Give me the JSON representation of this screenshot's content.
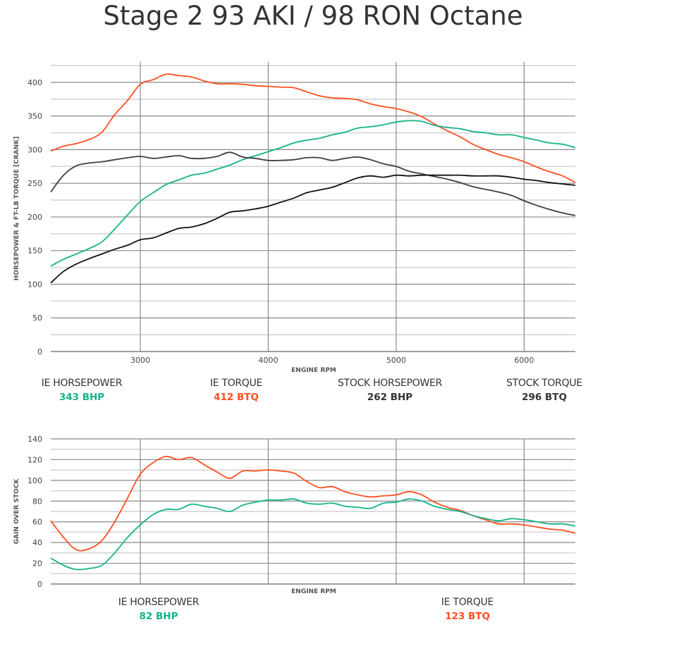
{
  "title": "Stage 2 93 AKI / 98 RON Octane",
  "chart_data": [
    {
      "type": "line",
      "xlabel": "ENGINE RPM",
      "ylabel": "HORSEPOWER & FT-LB TORQUE [CRANK]",
      "xlim": [
        2300,
        6400
      ],
      "ylim": [
        0,
        425
      ],
      "xticks": [
        3000,
        4000,
        5000,
        6000
      ],
      "yticks": [
        0,
        50,
        100,
        150,
        200,
        250,
        300,
        350,
        400
      ],
      "grid": true,
      "x": [
        2300,
        2400,
        2500,
        2600,
        2700,
        2800,
        2900,
        3000,
        3100,
        3200,
        3300,
        3400,
        3500,
        3600,
        3700,
        3800,
        3900,
        4000,
        4100,
        4200,
        4300,
        4400,
        4500,
        4600,
        4700,
        4800,
        4900,
        5000,
        5100,
        5200,
        5300,
        5400,
        5500,
        5600,
        5700,
        5800,
        5900,
        6000,
        6100,
        6200,
        6300,
        6400
      ],
      "series": [
        {
          "name": "IE TORQUE",
          "color": "#ff4f1e",
          "values": [
            298,
            305,
            309,
            315,
            326,
            352,
            373,
            397,
            404,
            412,
            410,
            408,
            402,
            398,
            398,
            397,
            395,
            394,
            393,
            392,
            386,
            380,
            377,
            376,
            374,
            368,
            364,
            361,
            356,
            349,
            338,
            328,
            319,
            308,
            300,
            293,
            288,
            282,
            274,
            267,
            261,
            251
          ]
        },
        {
          "name": "IE HORSEPOWER",
          "color": "#14b38a",
          "values": [
            127,
            137,
            145,
            153,
            163,
            182,
            203,
            223,
            236,
            248,
            255,
            262,
            265,
            271,
            277,
            285,
            291,
            297,
            303,
            310,
            314,
            317,
            322,
            326,
            332,
            334,
            337,
            341,
            343,
            342,
            336,
            333,
            331,
            327,
            325,
            322,
            322,
            318,
            314,
            310,
            308,
            303
          ]
        },
        {
          "name": "STOCK TORQUE",
          "color": "#3d3d3d",
          "values": [
            237,
            262,
            276,
            280,
            282,
            285,
            288,
            290,
            287,
            289,
            291,
            287,
            287,
            290,
            296,
            289,
            287,
            284,
            284,
            285,
            288,
            288,
            284,
            287,
            289,
            285,
            279,
            275,
            268,
            264,
            260,
            256,
            251,
            245,
            241,
            237,
            232,
            224,
            217,
            211,
            206,
            202
          ]
        },
        {
          "name": "STOCK HORSEPOWER",
          "color": "#111111",
          "values": [
            102,
            119,
            130,
            138,
            145,
            152,
            158,
            166,
            169,
            176,
            183,
            185,
            190,
            198,
            207,
            209,
            212,
            216,
            222,
            228,
            236,
            240,
            244,
            251,
            258,
            261,
            259,
            262,
            261,
            262,
            262,
            262,
            262,
            261,
            261,
            261,
            259,
            256,
            254,
            251,
            249,
            247
          ]
        }
      ],
      "legend": [
        {
          "label": "IE HORSEPOWER",
          "value": "343 BHP",
          "color": "#14b38a"
        },
        {
          "label": "IE TORQUE",
          "value": "412 BTQ",
          "color": "#ff4f1e"
        },
        {
          "label": "STOCK HORSEPOWER",
          "value": "262 BHP",
          "color": "#333333"
        },
        {
          "label": "STOCK TORQUE",
          "value": "296 BTQ",
          "color": "#333333"
        }
      ]
    },
    {
      "type": "line",
      "xlabel": "ENGINE RPM",
      "ylabel": "GAIN OVER STOCK",
      "xlim": [
        2300,
        6400
      ],
      "ylim": [
        0,
        140
      ],
      "xgrid": [
        3000,
        4000,
        5000,
        6000
      ],
      "yticks": [
        0,
        20,
        40,
        60,
        80,
        100,
        120,
        140
      ],
      "grid": true,
      "x": [
        2300,
        2400,
        2500,
        2600,
        2700,
        2800,
        2900,
        3000,
        3100,
        3200,
        3300,
        3400,
        3500,
        3600,
        3700,
        3800,
        3900,
        4000,
        4100,
        4200,
        4300,
        4400,
        4500,
        4600,
        4700,
        4800,
        4900,
        5000,
        5100,
        5200,
        5300,
        5400,
        5500,
        5600,
        5700,
        5800,
        5900,
        6000,
        6100,
        6200,
        6300,
        6400
      ],
      "series": [
        {
          "name": "IE TORQUE",
          "color": "#ff4f1e",
          "values": [
            61,
            45,
            33,
            34,
            42,
            60,
            83,
            106,
            117,
            123,
            120,
            122,
            115,
            108,
            102,
            109,
            109,
            110,
            109,
            107,
            99,
            93,
            94,
            89,
            86,
            84,
            85,
            86,
            89,
            86,
            79,
            74,
            71,
            66,
            62,
            58,
            58,
            57,
            55,
            53,
            52,
            49
          ]
        },
        {
          "name": "IE HORSEPOWER",
          "color": "#14b38a",
          "values": [
            25,
            18,
            14,
            15,
            18,
            30,
            45,
            57,
            67,
            72,
            72,
            77,
            75,
            73,
            70,
            76,
            79,
            81,
            81,
            82,
            78,
            77,
            78,
            75,
            74,
            73,
            78,
            79,
            82,
            80,
            75,
            72,
            70,
            66,
            63,
            61,
            63,
            62,
            60,
            58,
            58,
            56
          ]
        }
      ],
      "legend": [
        {
          "label": "IE HORSEPOWER",
          "value": "82 BHP",
          "color": "#14b38a"
        },
        {
          "label": "IE TORQUE",
          "value": "123 BTQ",
          "color": "#ff4f1e"
        }
      ]
    }
  ]
}
